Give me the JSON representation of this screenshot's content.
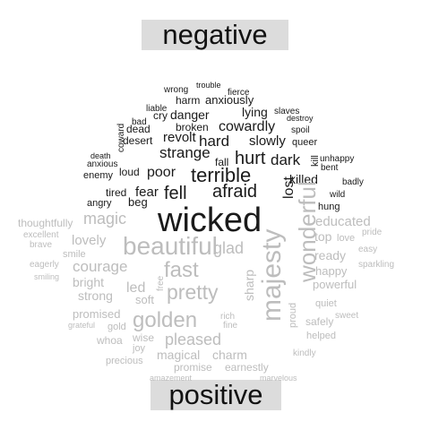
{
  "headers": {
    "negative": "negative",
    "positive": "positive"
  },
  "colors": {
    "negative": "#1a1a1a",
    "positive": "#bdbdbd",
    "label_bg": "#dcdcdc"
  },
  "words": {
    "negative": [
      "wrong",
      "trouble",
      "fierce",
      "harm",
      "anxiously",
      "liable",
      "slaves",
      "cry",
      "danger",
      "lying",
      "destroy",
      "bad",
      "broken",
      "cowardly",
      "spoil",
      "coward",
      "dead",
      "revolt",
      "hard",
      "slowly",
      "queer",
      "desert",
      "hurt",
      "dark",
      "death",
      "anxious",
      "strange",
      "fall",
      "kill",
      "unhappy",
      "enemy",
      "loud",
      "poor",
      "terrible",
      "bent",
      "killed",
      "badly",
      "lost",
      "tired",
      "fear",
      "fell",
      "afraid",
      "wild",
      "angry",
      "beg",
      "hung",
      "wicked"
    ],
    "positive": [
      "thoughtfully",
      "magic",
      "educated",
      "excellent",
      "pride",
      "brave",
      "lovely",
      "beautiful",
      "top",
      "love",
      "easy",
      "glad",
      "ready",
      "eagerly",
      "smile",
      "courage",
      "fast",
      "happy",
      "sparkling",
      "smiling",
      "bright",
      "wonderful",
      "powerful",
      "led",
      "free",
      "strong",
      "soft",
      "pretty",
      "majesty",
      "sharp",
      "quiet",
      "promised",
      "golden",
      "rich",
      "sweet",
      "grateful",
      "gold",
      "fine",
      "proud",
      "safely",
      "whoa",
      "wise",
      "helped",
      "joy",
      "pleased",
      "kindly",
      "precious",
      "magical",
      "charm",
      "promise",
      "earnestly",
      "amazement",
      "marvelous"
    ]
  }
}
